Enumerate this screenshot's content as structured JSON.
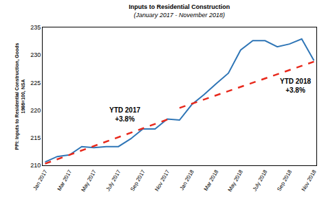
{
  "chart_data": {
    "type": "line",
    "title": "Inputs to Residential Construction",
    "subtitle": "(January 2017 - November 2018)",
    "y_label": "PPI: Inputs to Residential Construction, Goods\n1986=100, NSA",
    "categories": [
      "Jan 2017",
      null,
      "Mar 2017",
      null,
      "May 2017",
      null,
      "July 2017",
      null,
      "Sep 2017",
      null,
      "Nov 2017",
      null,
      "Jan 2018",
      null,
      "Mar 2018",
      null,
      "May 2018",
      null,
      "July 2018",
      null,
      "Sep 2018",
      null,
      "Nov 2018"
    ],
    "series": [
      {
        "color": "#2e75b6",
        "line_style": "solid",
        "values": [
          210.6,
          211.6,
          211.9,
          213.4,
          213.2,
          213.4,
          213.4,
          214.8,
          216.6,
          216.6,
          218.4,
          218.2,
          221.0,
          222.8,
          224.8,
          226.7,
          230.9,
          232.6,
          232.6,
          231.5,
          232.0,
          232.9,
          229.0
        ]
      },
      {
        "color": "#e8291c",
        "line_style": "dash",
        "values": [
          210.3,
          null,
          null,
          null,
          null,
          null,
          null,
          null,
          null,
          null,
          218.3,
          null,
          null,
          null,
          null,
          null,
          null,
          null,
          null,
          null,
          null,
          null,
          null
        ]
      },
      {
        "color": "#e8291c",
        "line_style": "dash",
        "values": [
          null,
          null,
          null,
          null,
          null,
          null,
          null,
          null,
          null,
          null,
          null,
          220.4,
          null,
          null,
          null,
          null,
          null,
          null,
          null,
          null,
          null,
          null,
          228.8
        ]
      }
    ],
    "annotations": [
      "YTD 2017\n+3.8%",
      "YTD 2018\n+3.8%"
    ],
    "ylim": [
      210,
      235
    ],
    "yticks": [
      210,
      215,
      220,
      225,
      230,
      235
    ],
    "grid": false
  }
}
